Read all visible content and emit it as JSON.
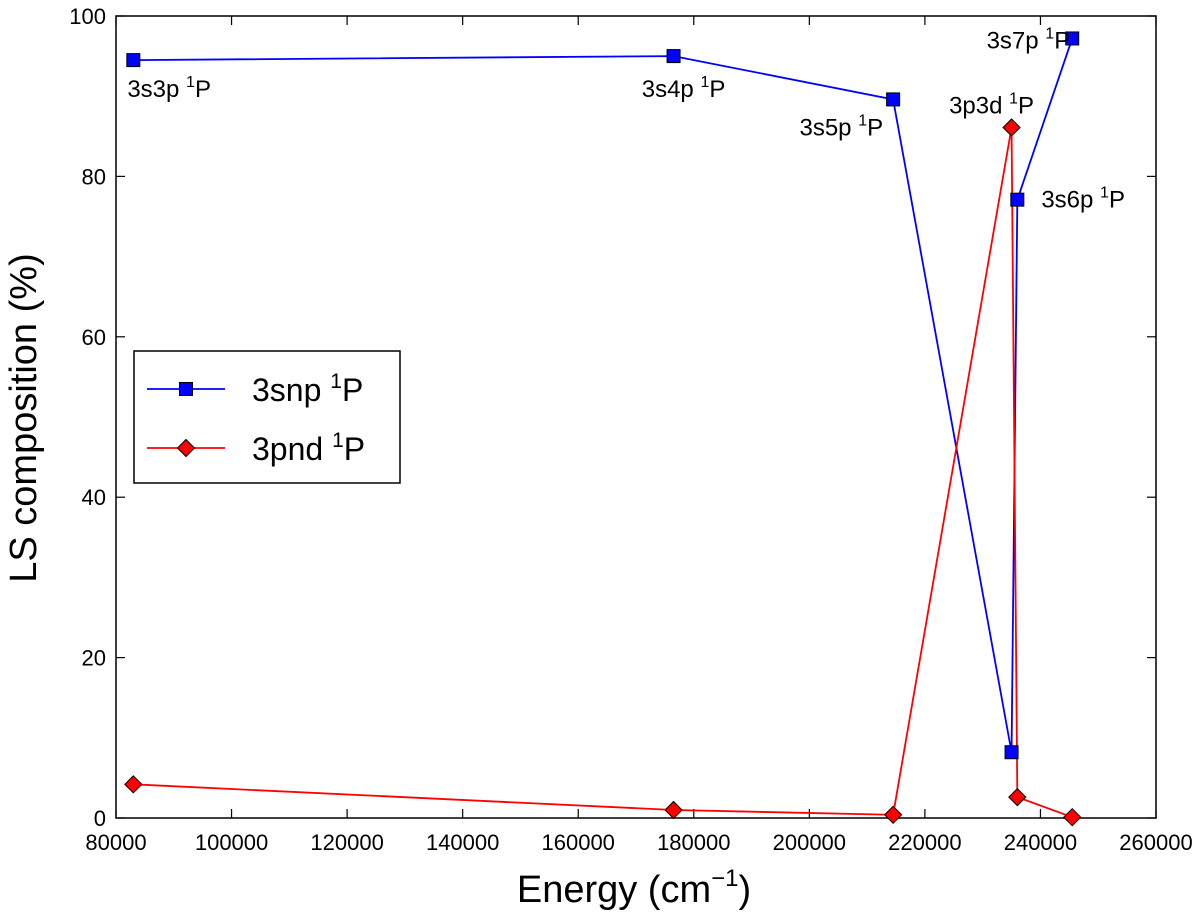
{
  "chart_data": {
    "type": "line",
    "title": "",
    "xlabel": "Energy (cm",
    "xlabel_sup": "−1",
    "xlabel_close": ")",
    "ylabel": "LS composition (%)",
    "xlim": [
      80000,
      260000
    ],
    "ylim": [
      0,
      100
    ],
    "xticks": [
      80000,
      100000,
      120000,
      140000,
      160000,
      180000,
      200000,
      220000,
      240000,
      260000
    ],
    "yticks": [
      0,
      20,
      40,
      60,
      80,
      100
    ],
    "x": [
      83000,
      176500,
      214500,
      235000,
      236000,
      245500
    ],
    "series": [
      {
        "name": "3snp",
        "name_sup": "1",
        "name_tail": "P",
        "color": "#0000ff",
        "marker": "square",
        "values": [
          94.5,
          95.0,
          89.6,
          8.2,
          77.1,
          97.2
        ]
      },
      {
        "name": "3pnd",
        "name_sup": "1",
        "name_tail": "P",
        "color": "#ff0000",
        "marker": "diamond",
        "values": [
          4.2,
          1.0,
          0.4,
          86.1,
          2.6,
          0.1
        ]
      }
    ],
    "legend": {
      "location": "center-left"
    },
    "annotations": [
      {
        "base": "3s3p ",
        "sup": "1",
        "tail": "P",
        "x": 83000,
        "y": 94.5,
        "anchor": "below-right"
      },
      {
        "base": "3s4p ",
        "sup": "1",
        "tail": "P",
        "x": 176500,
        "y": 95.0,
        "anchor": "below-center"
      },
      {
        "base": "3s5p ",
        "sup": "1",
        "tail": "P",
        "x": 214500,
        "y": 89.6,
        "anchor": "below-left"
      },
      {
        "base": "3p3d ",
        "sup": "1",
        "tail": "P",
        "x": 235000,
        "y": 86.1,
        "anchor": "above-center"
      },
      {
        "base": "3s6p ",
        "sup": "1",
        "tail": "P",
        "x": 236000,
        "y": 77.1,
        "anchor": "right"
      },
      {
        "base": "3s7p ",
        "sup": "1",
        "tail": "P",
        "x": 245500,
        "y": 97.2,
        "anchor": "left"
      }
    ]
  }
}
